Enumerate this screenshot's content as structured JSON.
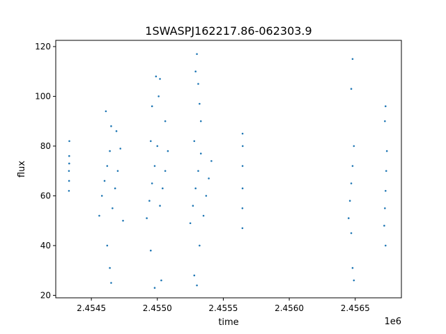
{
  "chart_data": {
    "type": "scatter",
    "title": "1SWASPJ162217.86-062303.9",
    "xlabel": "time",
    "ylabel": "flux",
    "x_offset_label": "1e6",
    "xlim": [
      2454230,
      2456850
    ],
    "ylim": [
      19,
      122.5
    ],
    "x_ticks": [
      2454500,
      2455000,
      2455500,
      2456000,
      2456500
    ],
    "x_tick_labels": [
      "2.4545",
      "2.4550",
      "2.4555",
      "2.4560",
      "2.4565"
    ],
    "y_ticks": [
      20,
      40,
      60,
      80,
      100,
      120
    ],
    "y_tick_labels": [
      "20",
      "40",
      "60",
      "80",
      "100",
      "120"
    ],
    "grid": false,
    "legend": "none",
    "marker_color": "#1f77b4",
    "series": [
      {
        "points": [
          [
            2454330,
            62
          ],
          [
            2454330,
            70
          ],
          [
            2454332,
            76
          ],
          [
            2454333,
            82
          ],
          [
            2454331,
            66
          ],
          [
            2454332,
            73
          ],
          [
            2454560,
            52
          ],
          [
            2454580,
            60
          ],
          [
            2454600,
            66
          ],
          [
            2454620,
            72
          ],
          [
            2454640,
            78
          ],
          [
            2454660,
            55
          ],
          [
            2454680,
            63
          ],
          [
            2454700,
            70
          ],
          [
            2454720,
            79
          ],
          [
            2454740,
            50
          ],
          [
            2454610,
            94
          ],
          [
            2454650,
            88
          ],
          [
            2454690,
            86
          ],
          [
            2454640,
            31
          ],
          [
            2454650,
            25
          ],
          [
            2454620,
            40
          ],
          [
            2454920,
            51
          ],
          [
            2454940,
            58
          ],
          [
            2454960,
            65
          ],
          [
            2454980,
            72
          ],
          [
            2455000,
            80
          ],
          [
            2455020,
            56
          ],
          [
            2455040,
            63
          ],
          [
            2455060,
            70
          ],
          [
            2455080,
            78
          ],
          [
            2454950,
            82
          ],
          [
            2454990,
            108
          ],
          [
            2455020,
            107
          ],
          [
            2455010,
            100
          ],
          [
            2454960,
            96
          ],
          [
            2454950,
            38
          ],
          [
            2454980,
            23
          ],
          [
            2455030,
            26
          ],
          [
            2455060,
            90
          ],
          [
            2455250,
            49
          ],
          [
            2455270,
            56
          ],
          [
            2455290,
            63
          ],
          [
            2455310,
            70
          ],
          [
            2455330,
            77
          ],
          [
            2455350,
            52
          ],
          [
            2455370,
            60
          ],
          [
            2455390,
            67
          ],
          [
            2455410,
            74
          ],
          [
            2455280,
            82
          ],
          [
            2455300,
            117
          ],
          [
            2455290,
            110
          ],
          [
            2455310,
            105
          ],
          [
            2455320,
            97
          ],
          [
            2455300,
            24
          ],
          [
            2455280,
            28
          ],
          [
            2455320,
            40
          ],
          [
            2455330,
            90
          ],
          [
            2455645,
            47
          ],
          [
            2455645,
            55
          ],
          [
            2455646,
            63
          ],
          [
            2455646,
            72
          ],
          [
            2455647,
            80
          ],
          [
            2455646,
            85
          ],
          [
            2456450,
            51
          ],
          [
            2456460,
            58
          ],
          [
            2456470,
            65
          ],
          [
            2456480,
            72
          ],
          [
            2456490,
            80
          ],
          [
            2456470,
            103
          ],
          [
            2456480,
            115
          ],
          [
            2456470,
            45
          ],
          [
            2456480,
            31
          ],
          [
            2456490,
            26
          ],
          [
            2456720,
            48
          ],
          [
            2456725,
            55
          ],
          [
            2456730,
            62
          ],
          [
            2456735,
            70
          ],
          [
            2456740,
            78
          ],
          [
            2456730,
            96
          ],
          [
            2456725,
            90
          ],
          [
            2456730,
            40
          ]
        ]
      }
    ]
  }
}
